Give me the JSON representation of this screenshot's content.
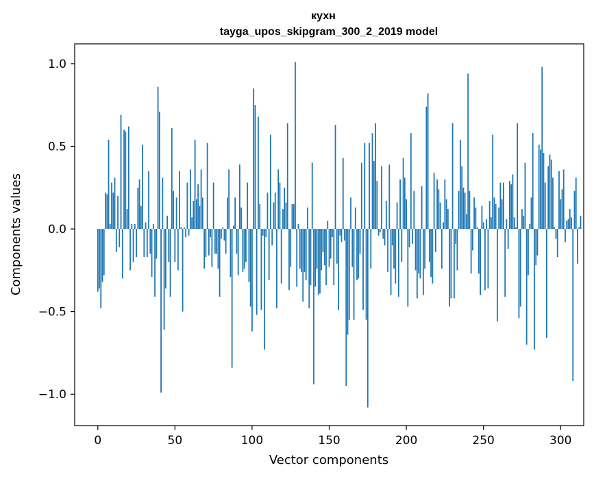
{
  "chart_data": {
    "type": "bar",
    "title": "кухн",
    "subtitle": "tayga_upos_skipgram_300_2_2019 model",
    "xlabel": "Vector components",
    "ylabel": "Components values",
    "xlim": [
      -15,
      315
    ],
    "ylim": [
      -1.19,
      1.12
    ],
    "xticks": [
      0,
      50,
      100,
      150,
      200,
      250,
      300
    ],
    "yticks": [
      -1.0,
      -0.5,
      0.0,
      0.5,
      1.0
    ],
    "ytick_labels": [
      "−1.0",
      "−0.5",
      "0.0",
      "0.5",
      "1.0"
    ],
    "bar_color": "#1f77b4",
    "grid": false,
    "values": [
      -0.38,
      -0.36,
      -0.48,
      -0.32,
      -0.28,
      0.22,
      0.21,
      0.54,
      0.03,
      0.28,
      0.22,
      0.31,
      -0.14,
      0.2,
      -0.11,
      0.69,
      -0.3,
      0.6,
      0.59,
      0.12,
      0.62,
      -0.25,
      0.03,
      -0.2,
      0.03,
      -0.17,
      0.25,
      0.3,
      0.14,
      0.51,
      -0.17,
      0.04,
      -0.17,
      0.35,
      -0.15,
      -0.29,
      0.03,
      -0.41,
      -0.18,
      0.86,
      0.71,
      -0.99,
      0.31,
      -0.61,
      -0.36,
      0.08,
      -0.2,
      -0.41,
      0.61,
      0.23,
      -0.2,
      0.19,
      -0.25,
      0.35,
      0.01,
      -0.5,
      0.01,
      -0.05,
      0.28,
      -0.04,
      0.36,
      0.07,
      0.17,
      0.54,
      0.18,
      0.27,
      0.14,
      0.36,
      0.19,
      -0.24,
      -0.17,
      0.52,
      -0.16,
      -0.05,
      -0.23,
      0.28,
      -0.15,
      -0.15,
      -0.24,
      -0.41,
      -0.06,
      0.01,
      -0.07,
      -0.15,
      0.19,
      0.36,
      -0.29,
      -0.84,
      0.02,
      0.19,
      -0.15,
      -0.28,
      0.39,
      0.13,
      -0.26,
      -0.24,
      -0.2,
      0.28,
      -0.32,
      -0.47,
      -0.62,
      0.85,
      0.75,
      -0.52,
      0.68,
      0.15,
      -0.49,
      -0.04,
      -0.73,
      -0.05,
      0.22,
      -0.31,
      0.57,
      -0.1,
      0.16,
      0.22,
      -0.48,
      0.36,
      0.28,
      -0.33,
      0.12,
      0.25,
      0.16,
      0.64,
      -0.37,
      -0.23,
      0.15,
      0.15,
      1.01,
      -0.35,
      0.03,
      -0.24,
      -0.26,
      -0.44,
      -0.26,
      -0.31,
      0.13,
      -0.48,
      -0.34,
      0.4,
      -0.94,
      -0.35,
      -0.24,
      -0.4,
      -0.39,
      -0.25,
      -0.14,
      -0.22,
      -0.34,
      0.05,
      -0.23,
      -0.18,
      -0.05,
      -0.34,
      0.63,
      -0.21,
      -0.49,
      -0.04,
      -0.08,
      0.43,
      -0.07,
      -0.95,
      -0.64,
      -0.55,
      0.19,
      -0.23,
      -0.55,
      0.13,
      -0.31,
      -0.3,
      -0.15,
      0.4,
      -0.49,
      0.52,
      -0.55,
      -1.08,
      0.52,
      -0.24,
      0.58,
      0.41,
      0.64,
      0.29,
      -0.04,
      -0.02,
      0.38,
      -0.06,
      -0.1,
      0.17,
      -0.26,
      0.39,
      -0.4,
      -0.1,
      -0.24,
      -0.33,
      0.16,
      -0.41,
      0.3,
      -0.2,
      0.43,
      0.31,
      0.18,
      -0.47,
      -0.11,
      0.58,
      -0.09,
      0.23,
      -0.25,
      -0.42,
      -0.27,
      -0.3,
      0.26,
      -0.4,
      -0.24,
      0.74,
      0.82,
      -0.2,
      -0.29,
      -0.33,
      0.34,
      -0.14,
      0.3,
      0.24,
      0.16,
      -0.24,
      0.04,
      0.3,
      0.18,
      0.12,
      -0.47,
      -0.42,
      0.64,
      -0.42,
      -0.09,
      -0.25,
      0.23,
      0.54,
      0.38,
      0.25,
      0.22,
      0.09,
      0.94,
      0.23,
      -0.27,
      -0.13,
      0.19,
      0.13,
      0.01,
      -0.27,
      -0.4,
      0.14,
      0.04,
      -0.37,
      0.06,
      -0.36,
      0.17,
      0.07,
      0.57,
      0.19,
      0.15,
      -0.56,
      0.13,
      0.28,
      0.18,
      0.28,
      -0.41,
      0.06,
      -0.12,
      0.29,
      0.27,
      0.33,
      0.07,
      0.01,
      0.64,
      -0.54,
      -0.47,
      0.12,
      0.08,
      0.4,
      -0.7,
      -0.28,
      0.03,
      0.19,
      0.58,
      -0.73,
      -0.22,
      -0.16,
      0.51,
      0.48,
      0.98,
      0.46,
      0.28,
      -0.66,
      0.38,
      0.45,
      0.42,
      0.31,
      0.01,
      -0.06,
      -0.17,
      0.35,
      0.18,
      0.24,
      0.36,
      -0.08,
      0.05,
      0.06,
      0.12,
      0.07,
      -0.92,
      0.23,
      0.31,
      -0.21,
      0.01,
      0.08
    ]
  }
}
